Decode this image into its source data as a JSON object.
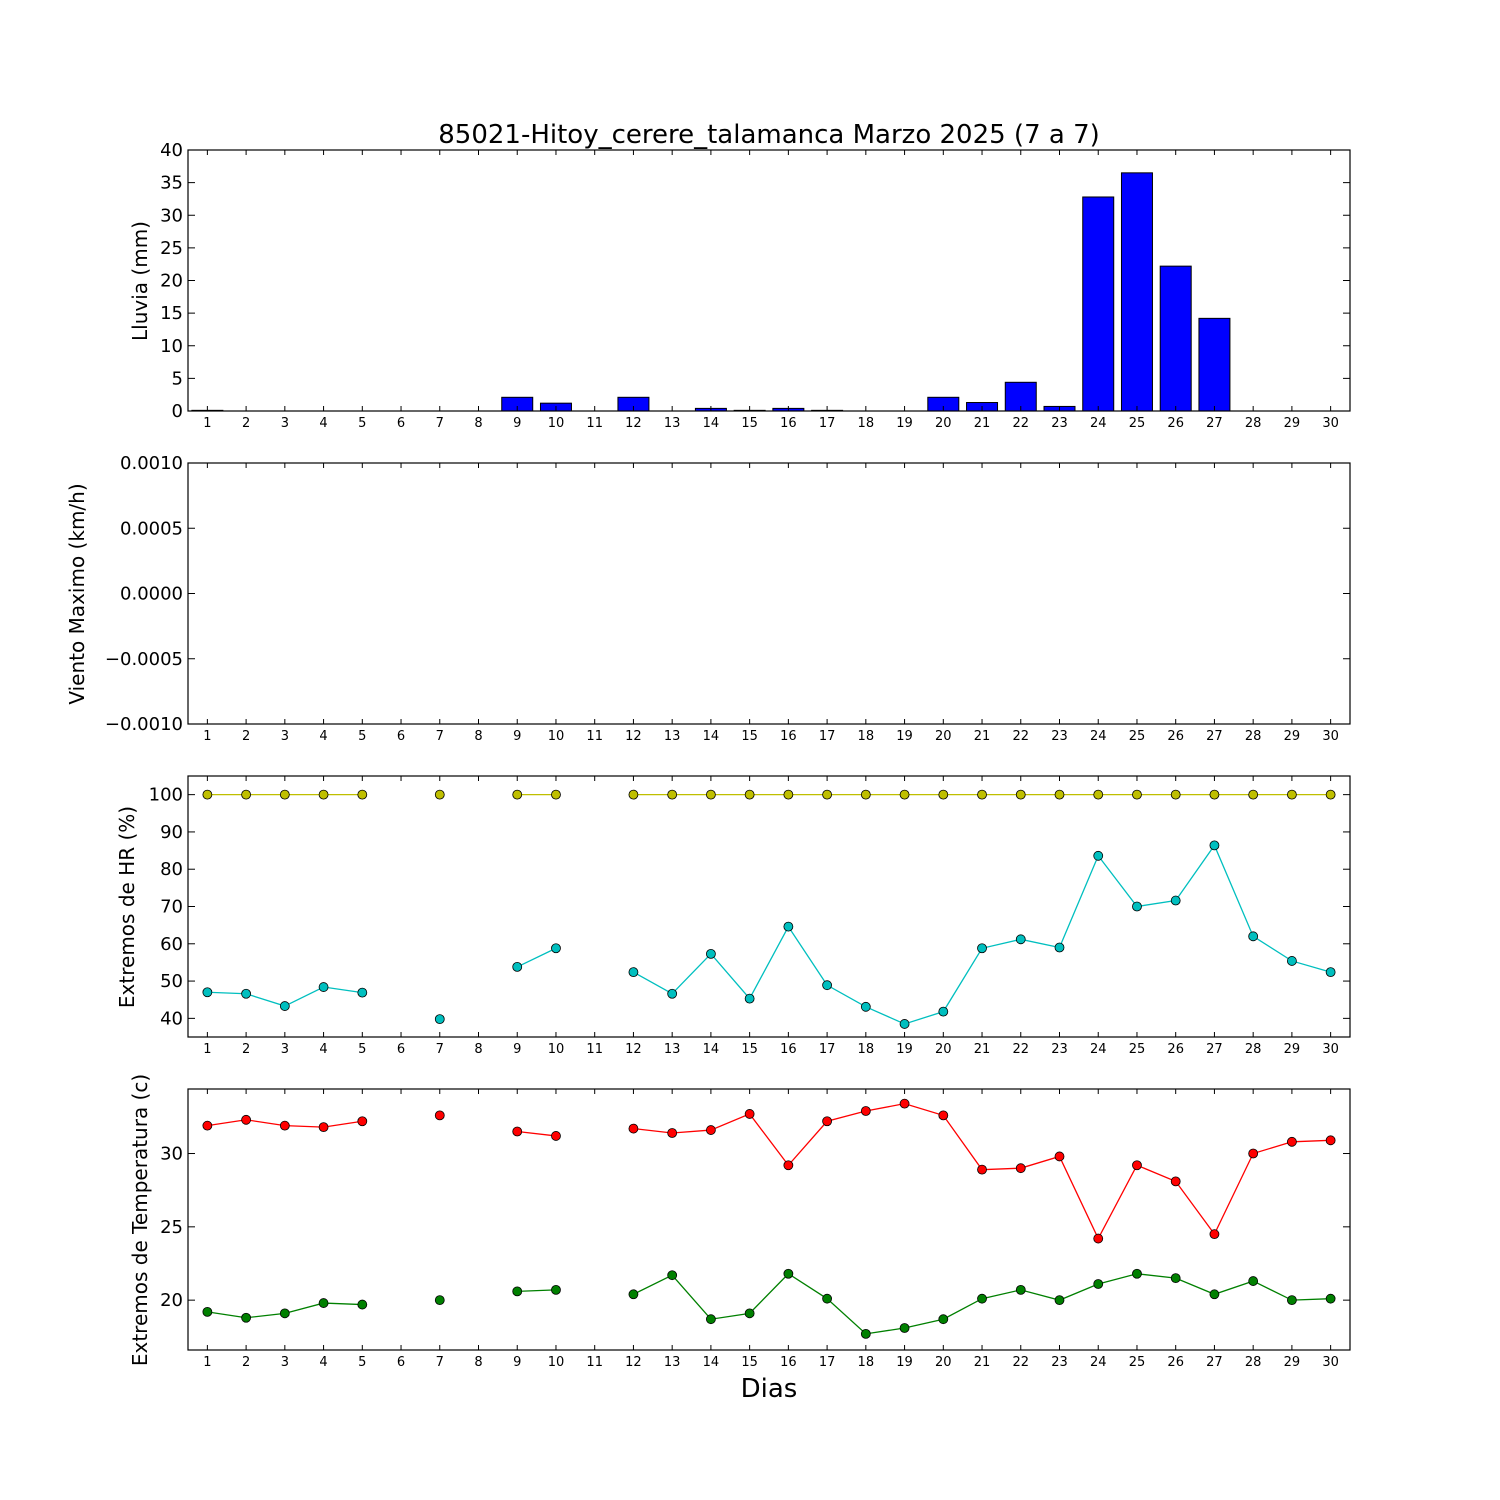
{
  "title": "85021-Hitoy_cerere_talamanca Marzo 2025  (7 a 7)",
  "xlabel": "Dias",
  "chart_data": [
    {
      "type": "bar",
      "ylabel": "Lluvia (mm)",
      "categories": [
        1,
        2,
        3,
        4,
        5,
        6,
        7,
        8,
        9,
        10,
        11,
        12,
        13,
        14,
        15,
        16,
        17,
        18,
        19,
        20,
        21,
        22,
        23,
        24,
        25,
        26,
        27,
        28,
        29,
        30
      ],
      "series": [
        {
          "values": [
            0.1,
            0,
            0,
            0,
            0,
            0,
            0,
            0,
            2.1,
            1.2,
            0,
            2.1,
            0,
            0.4,
            0.1,
            0.4,
            0.1,
            0,
            0,
            2.1,
            1.3,
            4.4,
            0.7,
            32.8,
            36.5,
            22.2,
            14.2,
            0,
            0,
            0
          ],
          "color": "#0000ff"
        }
      ],
      "ylim": [
        0,
        40
      ],
      "yticks": [
        "0",
        "5",
        "10",
        "15",
        "20",
        "25",
        "30",
        "35",
        "40"
      ],
      "ytick_values": [
        0,
        5,
        10,
        15,
        20,
        25,
        30,
        35,
        40
      ],
      "grid": false
    },
    {
      "type": "line",
      "ylabel": "Viento Maximo (km/h)",
      "categories": [
        1,
        2,
        3,
        4,
        5,
        6,
        7,
        8,
        9,
        10,
        11,
        12,
        13,
        14,
        15,
        16,
        17,
        18,
        19,
        20,
        21,
        22,
        23,
        24,
        25,
        26,
        27,
        28,
        29,
        30
      ],
      "series": [],
      "ylim": [
        -0.001,
        0.001
      ],
      "yticks": [
        "−0.0010",
        "−0.0005",
        "0.0000",
        "0.0005",
        "0.0010"
      ],
      "ytick_values": [
        -0.001,
        -0.0005,
        0,
        0.0005,
        0.001
      ],
      "grid": false
    },
    {
      "type": "line",
      "ylabel": "Extremos de HR (%)",
      "categories": [
        1,
        2,
        3,
        4,
        5,
        6,
        7,
        8,
        9,
        10,
        11,
        12,
        13,
        14,
        15,
        16,
        17,
        18,
        19,
        20,
        21,
        22,
        23,
        24,
        25,
        26,
        27,
        28,
        29,
        30
      ],
      "series": [
        {
          "values": [
            100,
            100,
            100,
            100,
            100,
            null,
            100,
            null,
            100,
            100,
            null,
            100,
            100,
            100,
            100,
            100,
            100,
            100,
            100,
            100,
            100,
            100,
            100,
            100,
            100,
            100,
            100,
            100,
            100,
            100
          ],
          "color": "#bfbf00"
        },
        {
          "values": [
            47,
            46.6,
            43.3,
            48.4,
            46.9,
            null,
            39.8,
            null,
            53.8,
            58.8,
            null,
            52.4,
            46.6,
            57.3,
            45.3,
            64.6,
            48.9,
            43.1,
            38.5,
            41.8,
            58.8,
            61.2,
            59,
            83.6,
            70,
            71.6,
            86.4,
            62,
            55.4,
            52.4
          ],
          "color": "#00bfbf"
        }
      ],
      "ylim": [
        35,
        105
      ],
      "yticks": [
        "40",
        "50",
        "60",
        "70",
        "80",
        "90",
        "100"
      ],
      "ytick_values": [
        40,
        50,
        60,
        70,
        80,
        90,
        100
      ],
      "grid": false
    },
    {
      "type": "line",
      "ylabel": "Extremos de Temperatura (c)",
      "categories": [
        1,
        2,
        3,
        4,
        5,
        6,
        7,
        8,
        9,
        10,
        11,
        12,
        13,
        14,
        15,
        16,
        17,
        18,
        19,
        20,
        21,
        22,
        23,
        24,
        25,
        26,
        27,
        28,
        29,
        30
      ],
      "series": [
        {
          "values": [
            31.9,
            32.3,
            31.9,
            31.8,
            32.2,
            null,
            32.6,
            null,
            31.5,
            31.2,
            null,
            31.7,
            31.4,
            31.6,
            32.7,
            29.2,
            32.2,
            32.9,
            33.4,
            32.6,
            28.9,
            29,
            29.8,
            24.2,
            29.2,
            28.1,
            24.5,
            30,
            30.8,
            30.9
          ],
          "color": "#ff0000"
        },
        {
          "values": [
            19.2,
            18.8,
            19.1,
            19.8,
            19.7,
            null,
            20,
            null,
            20.6,
            20.7,
            null,
            20.4,
            21.7,
            18.7,
            19.1,
            21.8,
            20.1,
            17.7,
            18.1,
            18.7,
            20.1,
            20.7,
            20,
            21.1,
            21.8,
            21.5,
            20.4,
            21.3,
            20,
            20.1
          ],
          "color": "#008000"
        }
      ],
      "ylim": [
        16.6,
        34.4
      ],
      "yticks": [
        "20",
        "25",
        "30"
      ],
      "ytick_values": [
        20,
        25,
        30
      ],
      "grid": false
    }
  ]
}
